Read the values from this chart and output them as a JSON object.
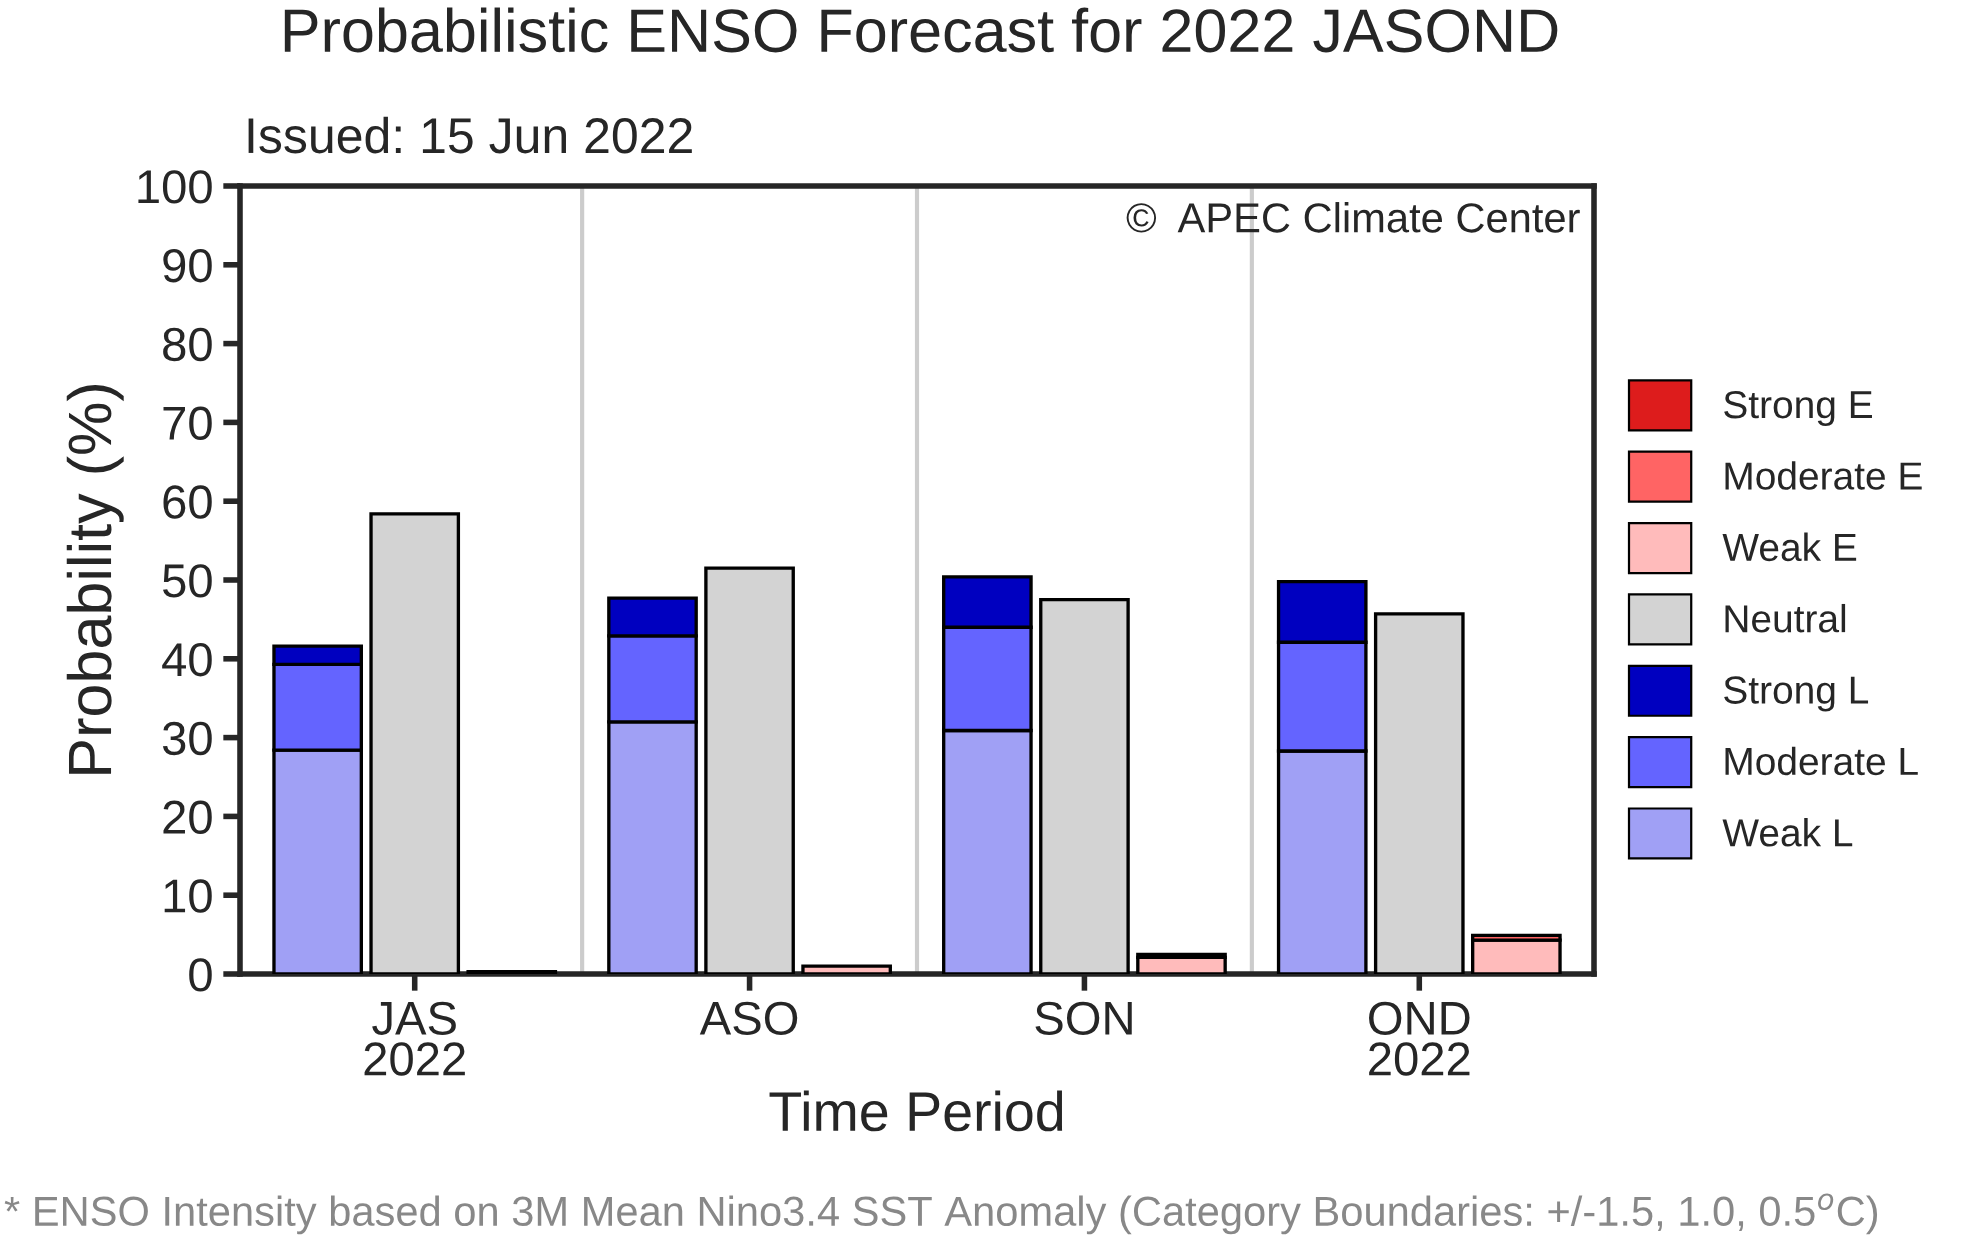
{
  "chart_data": {
    "type": "bar",
    "title": "Probabilistic ENSO Forecast for 2022 JASOND",
    "subtitle": "Issued: 15 Jun 2022",
    "xlabel": "Time Period",
    "ylabel": "Probability (%)",
    "categories": [
      null,
      "JAS\n2022",
      null,
      null,
      "ASO",
      null,
      null,
      "SON",
      null,
      null,
      "OND\n2022",
      null
    ],
    "stacked": true,
    "series": [
      {
        "name": "Weak L",
        "color": "#a0a0f5",
        "values": [
          28.4,
          null,
          null,
          32.0,
          null,
          null,
          30.9,
          null,
          null,
          28.3,
          null,
          null
        ]
      },
      {
        "name": "Moderate L",
        "color": "#6464ff",
        "values": [
          10.9,
          null,
          null,
          10.9,
          null,
          null,
          13.1,
          null,
          null,
          13.8,
          null,
          null
        ]
      },
      {
        "name": "Strong L",
        "color": "#0000c0",
        "values": [
          2.3,
          null,
          null,
          4.8,
          null,
          null,
          6.4,
          null,
          null,
          7.7,
          null,
          null
        ]
      },
      {
        "name": "Neutral",
        "color": "#d3d3d3",
        "values": [
          null,
          58.4,
          null,
          null,
          51.5,
          null,
          null,
          47.5,
          null,
          null,
          45.7,
          null
        ]
      },
      {
        "name": "Weak E",
        "color": "#ffbbbb",
        "values": [
          null,
          null,
          0.3,
          null,
          null,
          1.0,
          null,
          null,
          2.1,
          null,
          null,
          4.3
        ]
      },
      {
        "name": "Moderate E",
        "color": "#ff6464",
        "values": [
          null,
          null,
          null,
          null,
          null,
          null,
          null,
          null,
          0.4,
          null,
          null,
          0.6
        ]
      },
      {
        "name": "Strong E",
        "color": "#dd1c1c",
        "values": [
          null,
          null,
          null,
          null,
          null,
          null,
          null,
          null,
          null,
          null,
          null,
          null
        ]
      }
    ],
    "ylim": [
      0,
      100
    ],
    "yticks": [
      0,
      10,
      20,
      30,
      40,
      50,
      60,
      70,
      80,
      90,
      100
    ],
    "grid": false,
    "legend": "right",
    "annotations": [
      "©  APEC Climate Center",
      "* ENSO Intensity based on 3M Mean Nino3.4 SST Anomaly (Category Boundaries: +/-1.5, 1.0, 0.5$^{o}$C)"
    ]
  }
}
